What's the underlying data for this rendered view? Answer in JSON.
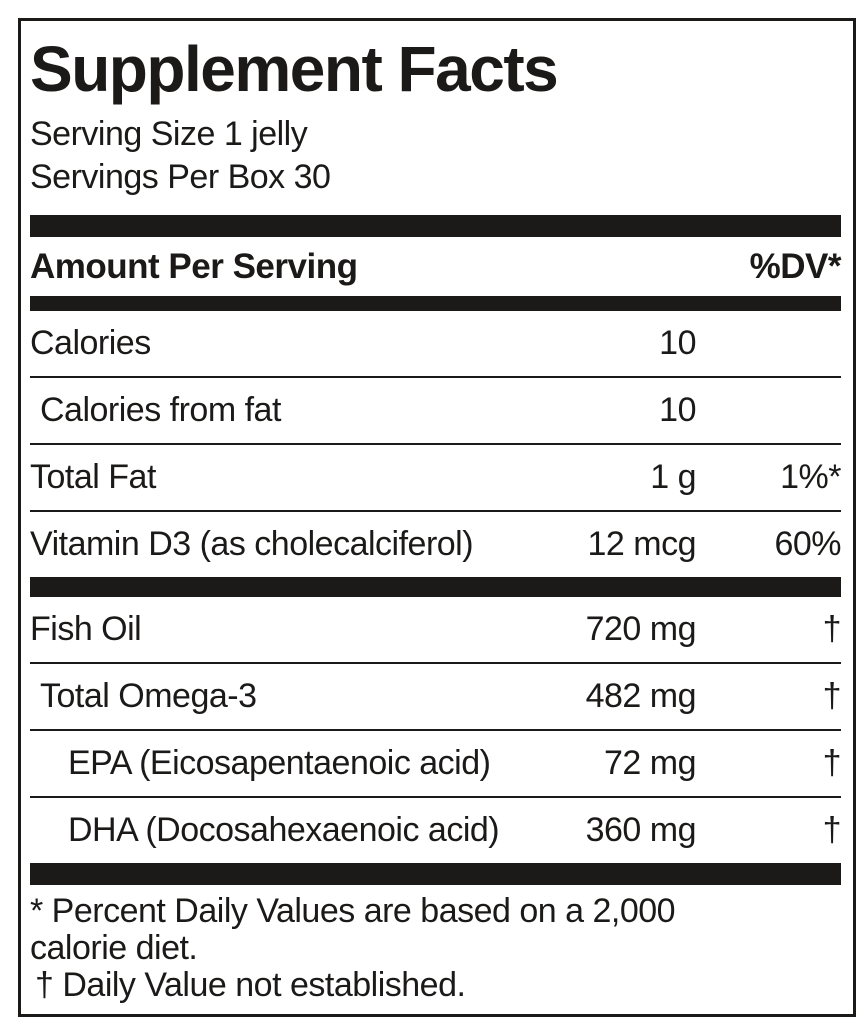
{
  "label": {
    "title": "Supplement Facts",
    "serving_size": "Serving Size 1 jelly",
    "servings_per_box": "Servings Per Box 30",
    "header": {
      "amount_per_serving": "Amount Per Serving",
      "dv": "%DV*"
    },
    "rows": [
      {
        "name": "Calories",
        "amount": "10",
        "dv": "",
        "indent": 0
      },
      {
        "name": "Calories from fat",
        "amount": "10",
        "dv": "",
        "indent": 1
      },
      {
        "name": "Total Fat",
        "amount": "1 g",
        "dv": "1%*",
        "indent": 0
      },
      {
        "name": "Vitamin D3 (as cholecalciferol)",
        "amount": "12 mcg",
        "dv": "60%",
        "indent": 0
      },
      {
        "name": "Fish Oil",
        "amount": "720 mg",
        "dv": "†",
        "indent": 0
      },
      {
        "name": "Total Omega-3",
        "amount": "482 mg",
        "dv": "†",
        "indent": 1
      },
      {
        "name": "EPA (Eicosapentaenoic acid)",
        "amount": "72 mg",
        "dv": "†",
        "indent": 2
      },
      {
        "name": "DHA (Docosahexaenoic acid)",
        "amount": "360 mg",
        "dv": "†",
        "indent": 2
      }
    ],
    "footnote_lines": [
      "* Percent Daily Values are based on a 2,000",
      "calorie diet.",
      "† Daily Value not established."
    ],
    "colors": {
      "ink": "#1b1a19",
      "background": "#ffffff"
    }
  }
}
